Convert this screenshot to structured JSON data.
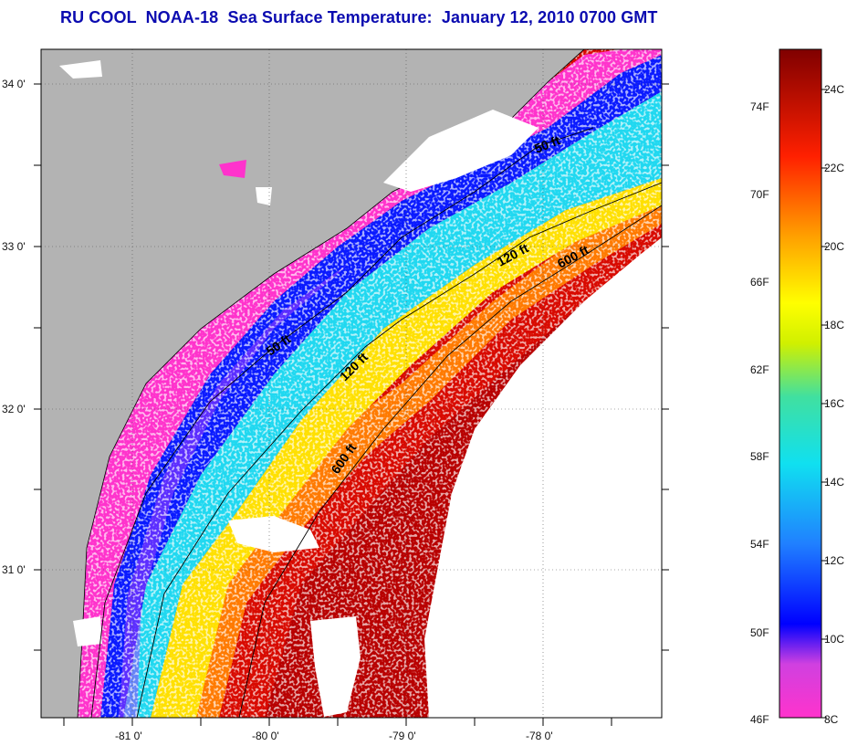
{
  "title": "RU COOL  NOAA-18  Sea Surface Temperature:  January 12, 2010 0700 GMT",
  "map": {
    "lat_labels": [
      "34 0'",
      "33 0'",
      "32 0'",
      "31 0'"
    ],
    "lon_labels": [
      "-81 0'",
      "-80 0'",
      "-79 0'",
      "-78 0'"
    ],
    "contour_labels": [
      "50 ft",
      "120 ft",
      "600 ft",
      "50 ft",
      "120 ft",
      "600 ft"
    ],
    "colors": {
      "land": "#b3b3b3",
      "cloud": "#ffffff",
      "cold": "#ff33cc",
      "cool": "#0a1aff",
      "mid": "#20d0f0",
      "warm": "#ffee00",
      "hot": "#ff1a00",
      "hottest": "#c00000"
    }
  },
  "colorbar": {
    "fahrenheit_labels": [
      "74F",
      "70F",
      "66F",
      "62F",
      "58F",
      "54F",
      "50F",
      "46F"
    ],
    "celsius_labels": [
      "24C",
      "22C",
      "20C",
      "18C",
      "16C",
      "14C",
      "12C",
      "10C",
      "8C"
    ]
  }
}
